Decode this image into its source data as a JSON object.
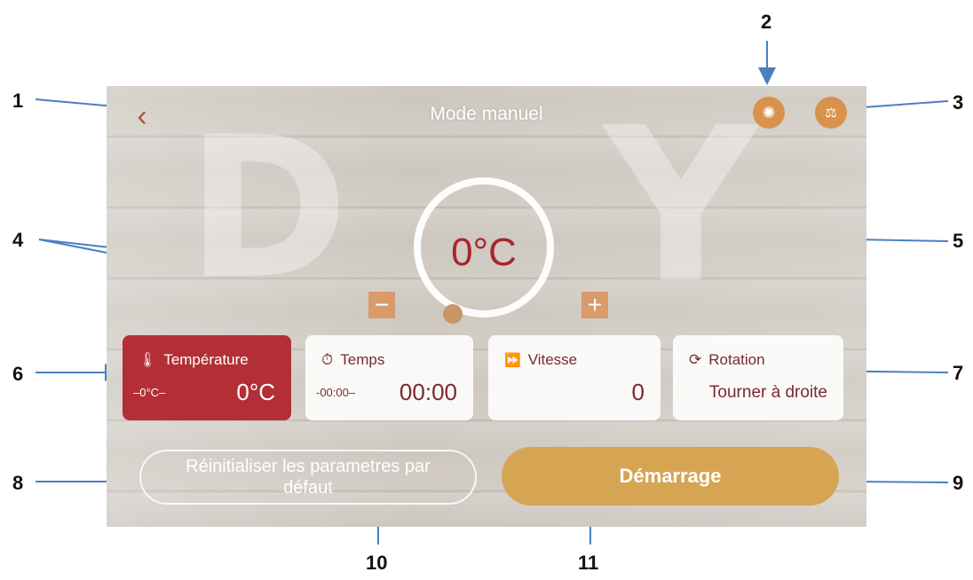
{
  "screen": {
    "title": "Mode manuel",
    "back_icon": "chevron-left-icon",
    "light_icon": "light-icon",
    "scale_icon": "scale-icon",
    "dial": {
      "value": "0°C",
      "minus_label": "−",
      "plus_label": "+"
    },
    "cards": {
      "temperature": {
        "label": "Température",
        "small": "–0°C–",
        "value": "0°C",
        "icon": "thermometer-icon"
      },
      "time": {
        "label": "Temps",
        "small": "-00:00–",
        "value": "00:00",
        "icon": "timer-icon"
      },
      "speed": {
        "label": "Vitesse",
        "value": "0",
        "icon": "fast-forward-icon"
      },
      "rotation": {
        "label": "Rotation",
        "value": "Tourner à droite",
        "icon": "rotate-icon"
      }
    },
    "reset_label": "Réinitialiser les parametres par défaut",
    "start_label": "Démarrage"
  },
  "callouts": [
    "1",
    "2",
    "3",
    "4",
    "5",
    "6",
    "7",
    "8",
    "9",
    "10",
    "11"
  ],
  "colors": {
    "accent_red": "#b32f35",
    "accent_orange": "#d6a553",
    "icon_orange": "#d9924b"
  }
}
